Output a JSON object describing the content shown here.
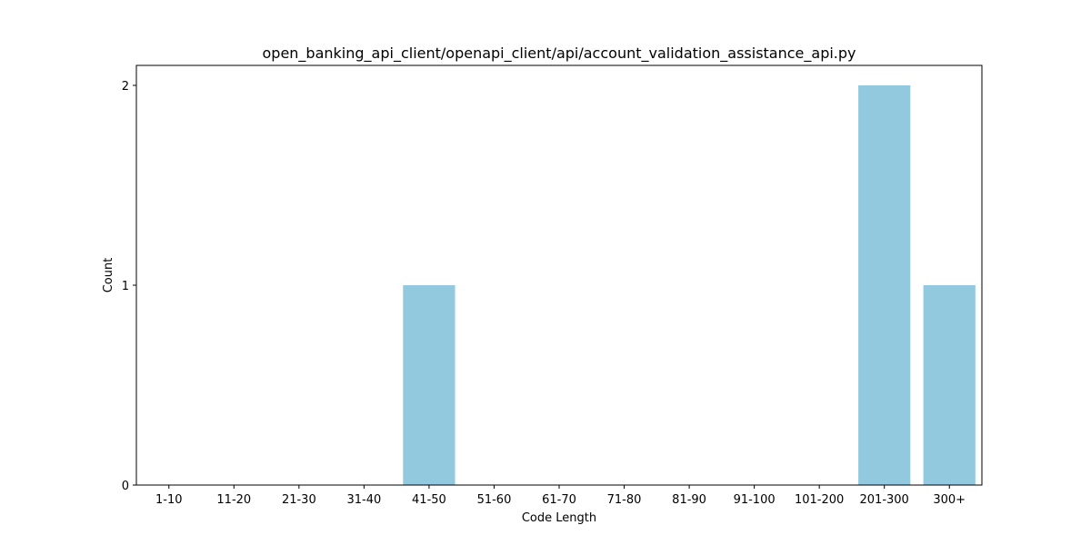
{
  "chart_data": {
    "type": "bar",
    "title": "open_banking_api_client/openapi_client/api/account_validation_assistance_api.py",
    "xlabel": "Code Length",
    "ylabel": "Count",
    "categories": [
      "1-10",
      "11-20",
      "21-30",
      "31-40",
      "41-50",
      "51-60",
      "61-70",
      "71-80",
      "81-90",
      "91-100",
      "101-200",
      "201-300",
      "300+"
    ],
    "values": [
      0,
      0,
      0,
      0,
      1,
      0,
      0,
      0,
      0,
      0,
      0,
      2,
      1
    ],
    "yticks": [
      0,
      1,
      2
    ],
    "ylim": [
      0,
      2.1
    ],
    "bar_color": "#92c9de",
    "grid": false
  }
}
